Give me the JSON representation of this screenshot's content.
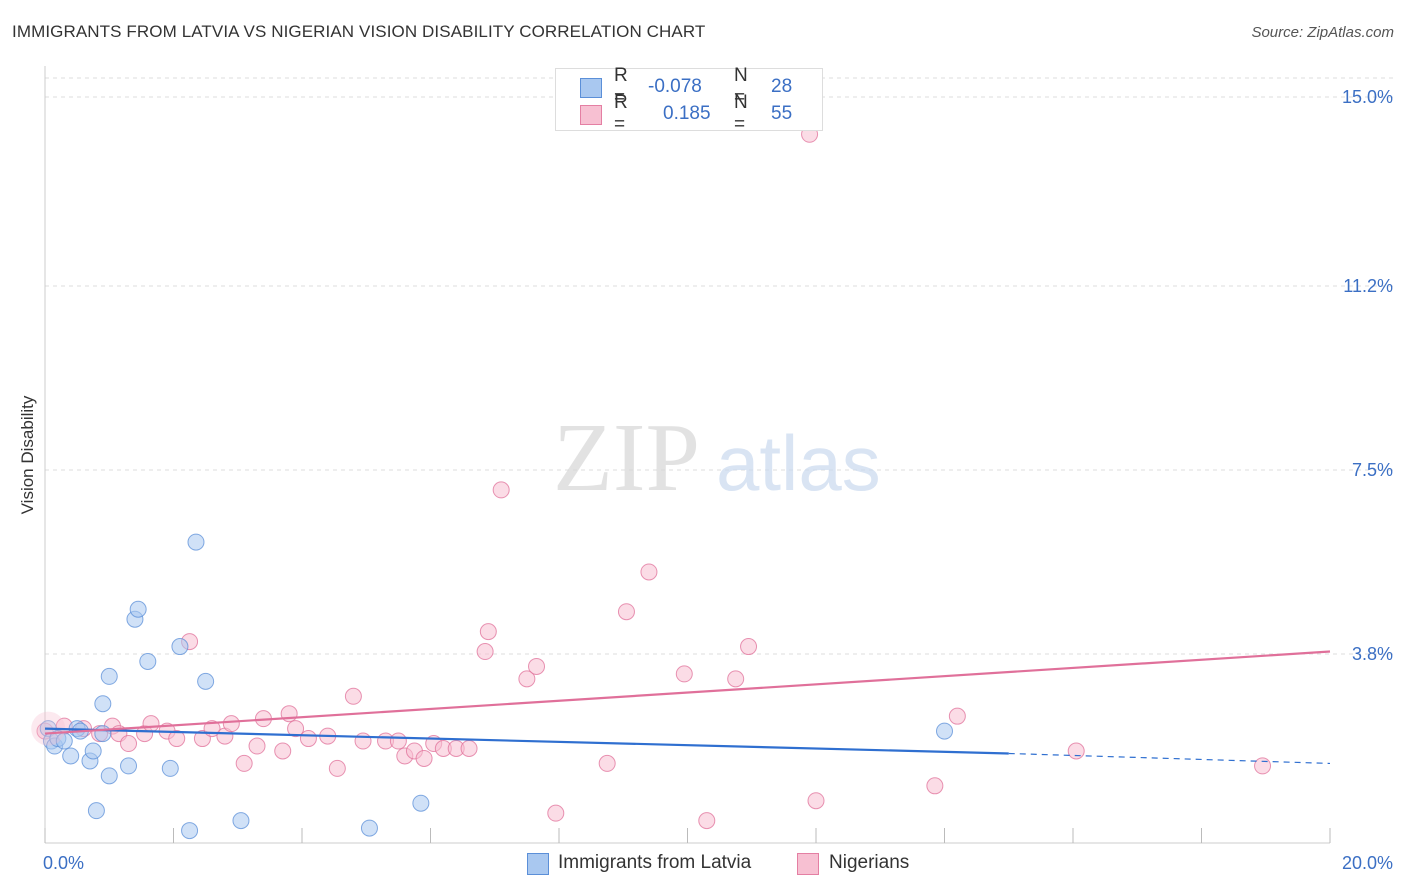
{
  "header": {
    "title": "IMMIGRANTS FROM LATVIA VS NIGERIAN VISION DISABILITY CORRELATION CHART",
    "source": "Source: ZipAtlas.com"
  },
  "watermark": {
    "zip": "ZIP",
    "atlas": "atlas"
  },
  "legend": {
    "rows": [
      {
        "r_label": "R =",
        "r_value": "-0.078",
        "n_label": "N =",
        "n_value": "28",
        "color": "#a9c8f0",
        "border": "#5b8fd8"
      },
      {
        "r_label": "R =",
        "r_value": "0.185",
        "n_label": "N =",
        "n_value": "55",
        "color": "#f7c0d2",
        "border": "#e47fa3"
      }
    ]
  },
  "bottom_legend": {
    "items": [
      {
        "label": "Immigrants from Latvia",
        "color": "#a9c8f0",
        "border": "#5b8fd8"
      },
      {
        "label": "Nigerians",
        "color": "#f7c0d2",
        "border": "#e47fa3"
      }
    ]
  },
  "chart_data": {
    "type": "scatter",
    "title": "IMMIGRANTS FROM LATVIA VS NIGERIAN VISION DISABILITY CORRELATION CHART",
    "xlabel": "",
    "ylabel": "Vision Disability",
    "xlim": [
      0,
      20
    ],
    "ylim": [
      0,
      15.5
    ],
    "x_tick_labels": [
      "0.0%",
      "20.0%"
    ],
    "y_ticks": [
      3.8,
      7.5,
      11.2,
      15.0
    ],
    "y_tick_labels": [
      "3.8%",
      "7.5%",
      "11.2%",
      "15.0%"
    ],
    "grid": true,
    "legend_position": "top-center",
    "series": [
      {
        "name": "Immigrants from Latvia",
        "color": "#5b8fd8",
        "fill": "#a9c8f0",
        "points": [
          [
            0.05,
            2.3
          ],
          [
            0.1,
            2.05
          ],
          [
            0.15,
            1.95
          ],
          [
            0.2,
            2.1
          ],
          [
            0.3,
            2.05
          ],
          [
            0.4,
            1.75
          ],
          [
            0.5,
            2.3
          ],
          [
            0.55,
            2.25
          ],
          [
            0.7,
            1.65
          ],
          [
            0.75,
            1.85
          ],
          [
            0.8,
            0.65
          ],
          [
            0.9,
            2.2
          ],
          [
            0.9,
            2.8
          ],
          [
            1.0,
            1.35
          ],
          [
            1.0,
            3.35
          ],
          [
            1.3,
            1.55
          ],
          [
            1.4,
            4.5
          ],
          [
            1.45,
            4.7
          ],
          [
            1.6,
            3.65
          ],
          [
            1.95,
            1.5
          ],
          [
            2.1,
            3.95
          ],
          [
            2.25,
            0.25
          ],
          [
            2.35,
            6.05
          ],
          [
            2.5,
            3.25
          ],
          [
            3.05,
            0.45
          ],
          [
            5.05,
            0.3
          ],
          [
            5.85,
            0.8
          ],
          [
            14.0,
            2.25
          ]
        ],
        "trend": {
          "x0": 0,
          "y0": 2.3,
          "x1": 15.0,
          "y1": 1.8,
          "dash_x1": 20,
          "dash_y1": 1.6
        }
      },
      {
        "name": "Nigerians",
        "color": "#e0709a",
        "fill": "#f7c0d2",
        "points": [
          [
            0.0,
            2.25
          ],
          [
            0.3,
            2.35
          ],
          [
            0.6,
            2.3
          ],
          [
            0.85,
            2.2
          ],
          [
            1.05,
            2.35
          ],
          [
            1.15,
            2.2
          ],
          [
            1.3,
            2.0
          ],
          [
            1.55,
            2.2
          ],
          [
            1.65,
            2.4
          ],
          [
            1.9,
            2.25
          ],
          [
            2.05,
            2.1
          ],
          [
            2.25,
            4.05
          ],
          [
            2.45,
            2.1
          ],
          [
            2.6,
            2.3
          ],
          [
            2.8,
            2.15
          ],
          [
            2.9,
            2.4
          ],
          [
            3.1,
            1.6
          ],
          [
            3.3,
            1.95
          ],
          [
            3.4,
            2.5
          ],
          [
            3.7,
            1.85
          ],
          [
            3.8,
            2.6
          ],
          [
            3.9,
            2.3
          ],
          [
            4.1,
            2.1
          ],
          [
            4.4,
            2.15
          ],
          [
            4.55,
            1.5
          ],
          [
            4.8,
            2.95
          ],
          [
            4.95,
            2.05
          ],
          [
            5.3,
            2.05
          ],
          [
            5.5,
            2.05
          ],
          [
            5.6,
            1.75
          ],
          [
            5.75,
            1.85
          ],
          [
            5.9,
            1.7
          ],
          [
            6.05,
            2.0
          ],
          [
            6.2,
            1.9
          ],
          [
            6.4,
            1.9
          ],
          [
            6.6,
            1.9
          ],
          [
            6.85,
            3.85
          ],
          [
            6.9,
            4.25
          ],
          [
            7.1,
            7.1
          ],
          [
            7.5,
            3.3
          ],
          [
            7.65,
            3.55
          ],
          [
            7.95,
            0.6
          ],
          [
            8.75,
            1.6
          ],
          [
            9.05,
            4.65
          ],
          [
            9.4,
            5.45
          ],
          [
            9.95,
            3.4
          ],
          [
            10.3,
            0.45
          ],
          [
            10.75,
            3.3
          ],
          [
            10.95,
            3.95
          ],
          [
            11.9,
            14.25
          ],
          [
            12.0,
            0.85
          ],
          [
            13.85,
            1.15
          ],
          [
            14.2,
            2.55
          ],
          [
            16.05,
            1.85
          ],
          [
            18.95,
            1.55
          ]
        ],
        "trend": {
          "x0": 0,
          "y0": 2.2,
          "x1": 20,
          "y1": 3.85
        }
      }
    ]
  }
}
